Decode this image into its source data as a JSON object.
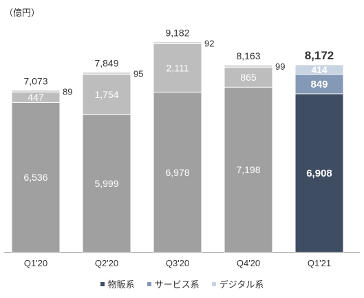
{
  "chart_data": {
    "type": "bar",
    "stacked": true,
    "unit_label": "（億円）",
    "categories": [
      "Q1'20",
      "Q2'20",
      "Q3'20",
      "Q4'20",
      "Q1'21"
    ],
    "totals": [
      "7,073",
      "7,849",
      "9,182",
      "8,163",
      "8,172"
    ],
    "series": [
      {
        "name": "物販系",
        "color": "#a0a0a0",
        "highlight_color": "#3f4d63",
        "values": [
          6536,
          5999,
          6978,
          7198,
          6908
        ],
        "labels": [
          "6,536",
          "5,999",
          "6,978",
          "7,198",
          "6,908"
        ]
      },
      {
        "name": "サービス系",
        "color": "#bdbdbd",
        "highlight_color": "#8499b5",
        "values": [
          447,
          1754,
          2111,
          865,
          849
        ],
        "labels": [
          "447",
          "1,754",
          "2,111",
          "865",
          "849"
        ]
      },
      {
        "name": "デジタル系",
        "color": "#d9d9d9",
        "highlight_color": "#c9d4e2",
        "values": [
          89,
          95,
          92,
          99,
          414
        ],
        "labels": [
          "89",
          "95",
          "92",
          "99",
          "414"
        ]
      }
    ],
    "highlight_index": 4,
    "legend_position": "bottom",
    "legend_colors": [
      "#3f4d63",
      "#8499b5",
      "#c9d4e2"
    ],
    "ylim": [
      0,
      10000
    ],
    "grid": false
  }
}
